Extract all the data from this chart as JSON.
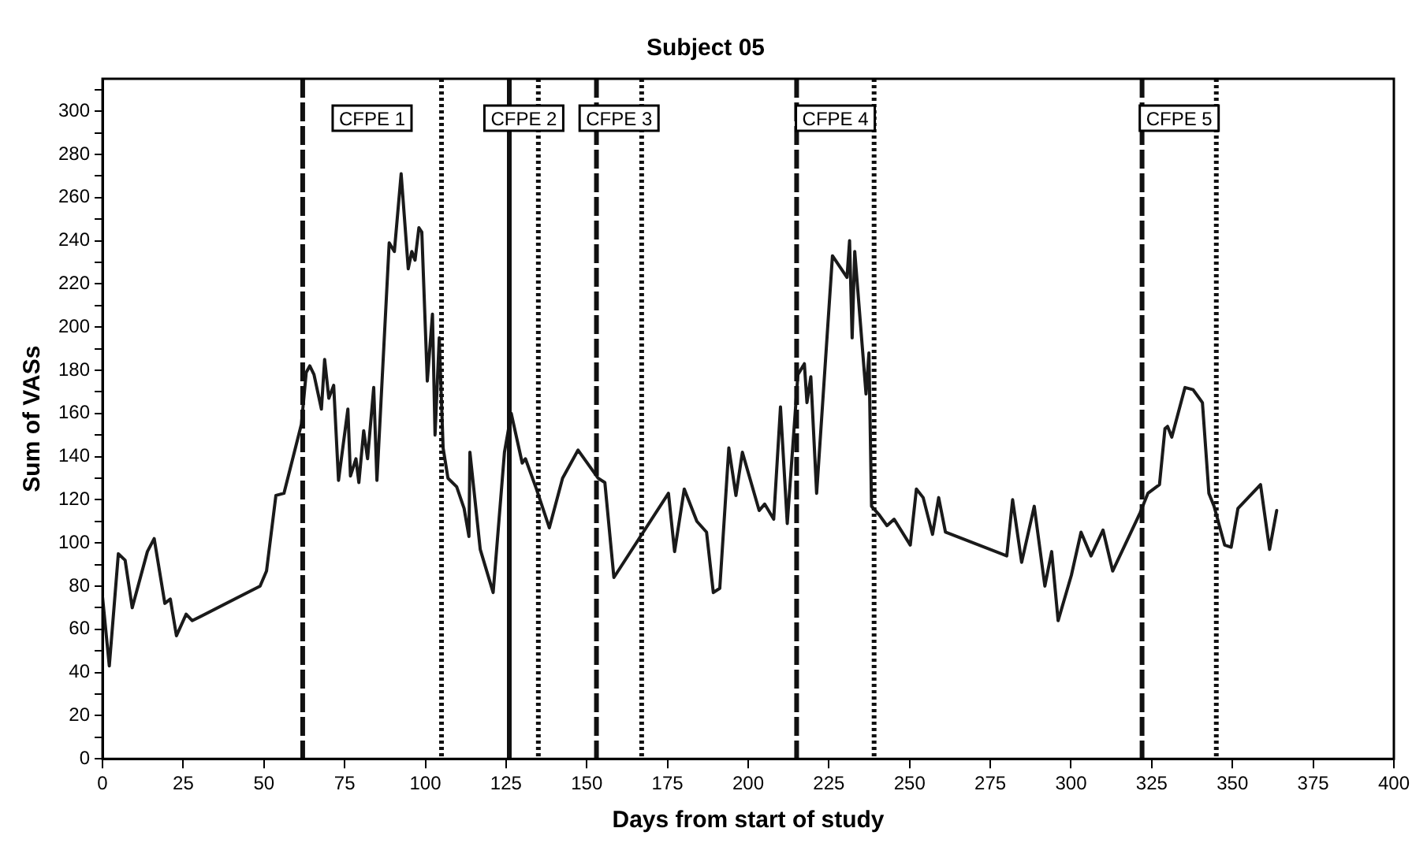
{
  "chart_data": {
    "type": "line",
    "title": "Subject 05",
    "xlabel": "Days from start of study",
    "ylabel": "Sum of VASs",
    "x": [
      0,
      2.1,
      4.9,
      7,
      9.2,
      13.9,
      16,
      19.3,
      21,
      22.9,
      25.9,
      27.8,
      48.8,
      50.8,
      53.7,
      56.2,
      61.6,
      63.1,
      64.2,
      65.5,
      67.8,
      68.8,
      70.1,
      71.6,
      73.1,
      76,
      76.8,
      78.5,
      79.4,
      80.9,
      82.1,
      84,
      85,
      88.8,
      90.4,
      92.5,
      94.7,
      95.8,
      96.8,
      98,
      98.9,
      100.6,
      102.2,
      103,
      104.3,
      105.5,
      107,
      109.7,
      112,
      113.5,
      113.8,
      117,
      121,
      124.5,
      126.6,
      130,
      131,
      134.4,
      138.4,
      142.5,
      147.3,
      153.5,
      155.6,
      158.4,
      175.3,
      177.2,
      180.2,
      184.1,
      187.1,
      189.2,
      191.2,
      194,
      196.2,
      198.2,
      203.4,
      205.1,
      207.9,
      210,
      212.1,
      215.4,
      217.4,
      218.2,
      219.4,
      221.2,
      226.1,
      230.6,
      231.4,
      232.2,
      233,
      236.5,
      237.4,
      238.2,
      240.6,
      243,
      245.2,
      250.2,
      252.1,
      254.2,
      257.1,
      259,
      261.1,
      280.1,
      281.9,
      284.7,
      288.6,
      291.9,
      294,
      296,
      300.1,
      303.1,
      306.2,
      309.9,
      312.9,
      321.4,
      323.8,
      327.4,
      329.1,
      329.9,
      331.2,
      335.3,
      337.8,
      340.7,
      342.7,
      344.3,
      347.6,
      349.6,
      351.7,
      358.7,
      361.5,
      363.7
    ],
    "series": [
      {
        "color": "#1a1a1a",
        "values": [
          75,
          43,
          95,
          92,
          70,
          96,
          102,
          72,
          74,
          57,
          67,
          64,
          80,
          87,
          122,
          123,
          155,
          179,
          182,
          178,
          162,
          185,
          167,
          173,
          129,
          162,
          131,
          139,
          128,
          152,
          139,
          172,
          129,
          239,
          235,
          271,
          227,
          235,
          231,
          246,
          244,
          175,
          206,
          150,
          195,
          144,
          130,
          126,
          116,
          103,
          142,
          97,
          77,
          142,
          160,
          137,
          139,
          125,
          107,
          130,
          143,
          130,
          128,
          84,
          123,
          96,
          125,
          110,
          105,
          77,
          79,
          144,
          122,
          142,
          115,
          118,
          111,
          163,
          109,
          178,
          183,
          165,
          177,
          123,
          233,
          223,
          240,
          195,
          235,
          169,
          188,
          117,
          113,
          108,
          111,
          99,
          125,
          121,
          104,
          121,
          105,
          94,
          120,
          91,
          117,
          80,
          96,
          64,
          85,
          105,
          94,
          106,
          87,
          114,
          123,
          127,
          153,
          154,
          149,
          172,
          171,
          165,
          123,
          117,
          99,
          98,
          116,
          127,
          97,
          115
        ]
      }
    ],
    "xlim": [
      0,
      400
    ],
    "xticks": [
      0,
      25,
      50,
      75,
      100,
      125,
      150,
      175,
      200,
      225,
      250,
      275,
      300,
      325,
      350,
      375,
      400
    ],
    "ylim": [
      0,
      315
    ],
    "yticks": [
      0,
      {
        "value": 10,
        "label": null
      },
      20,
      {
        "value": 30,
        "label": null
      },
      40,
      {
        "value": 50,
        "label": null
      },
      60,
      {
        "value": 70,
        "label": null
      },
      80,
      {
        "value": 90,
        "label": null
      },
      100,
      {
        "value": 110,
        "label": null
      },
      120,
      {
        "value": 130,
        "label": null
      },
      140,
      {
        "value": 150,
        "label": null
      },
      160,
      {
        "value": 170,
        "label": null
      },
      180,
      {
        "value": 190,
        "label": null
      },
      200,
      {
        "value": 210,
        "label": null
      },
      220,
      {
        "value": 230,
        "label": null
      },
      240,
      {
        "value": 250,
        "label": null
      },
      260,
      {
        "value": 270,
        "label": null
      },
      280,
      {
        "value": 290,
        "label": null
      },
      300,
      {
        "value": 310,
        "label": null
      }
    ],
    "grid": false,
    "legend": false,
    "marker": "none",
    "line_style": "solid",
    "ref_lines": [
      {
        "axis": "x",
        "value": 62,
        "line_style": "dashed",
        "color": "#111111",
        "label": "CFPE 1"
      },
      {
        "axis": "x",
        "value": 105,
        "line_style": "dotted",
        "color": "#111111"
      },
      {
        "axis": "x",
        "value": 126,
        "line_style": "solid",
        "color": "#111111",
        "label": "CFPE 2"
      },
      {
        "axis": "x",
        "value": 135,
        "line_style": "dotted",
        "color": "#111111"
      },
      {
        "axis": "x",
        "value": 153,
        "line_style": "dashed",
        "color": "#111111",
        "label": "CFPE 3"
      },
      {
        "axis": "x",
        "value": 167,
        "line_style": "dotted",
        "color": "#111111"
      },
      {
        "axis": "x",
        "value": 215,
        "line_style": "dashed",
        "color": "#111111",
        "label": "CFPE 4"
      },
      {
        "axis": "x",
        "value": 239,
        "line_style": "dotted",
        "color": "#111111"
      },
      {
        "axis": "x",
        "value": 322,
        "line_style": "dashed",
        "color": "#111111",
        "label": "CFPE 5"
      },
      {
        "axis": "x",
        "value": 345,
        "line_style": "dotted",
        "color": "#111111"
      }
    ]
  }
}
